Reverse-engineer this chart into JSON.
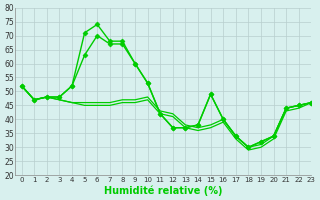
{
  "xlabel": "Humidité relative (%)",
  "xlim": [
    -0.5,
    23
  ],
  "ylim": [
    20,
    80
  ],
  "yticks": [
    20,
    25,
    30,
    35,
    40,
    45,
    50,
    55,
    60,
    65,
    70,
    75,
    80
  ],
  "xticks": [
    0,
    1,
    2,
    3,
    4,
    5,
    6,
    7,
    8,
    9,
    10,
    11,
    12,
    13,
    14,
    15,
    16,
    17,
    18,
    19,
    20,
    21,
    22,
    23
  ],
  "line_color": "#00cc00",
  "bg_color": "#d8f0ee",
  "grid_color": "#b8cece",
  "series": [
    {
      "y": [
        52,
        47,
        48,
        48,
        52,
        71,
        74,
        68,
        68,
        60,
        53,
        42,
        37,
        37,
        38,
        49,
        40,
        34,
        30,
        32,
        34,
        44,
        45,
        46
      ],
      "marker": true,
      "lw": 1.0
    },
    {
      "y": [
        52,
        47,
        48,
        48,
        52,
        63,
        70,
        67,
        67,
        60,
        53,
        42,
        37,
        37,
        38,
        49,
        40,
        34,
        30,
        32,
        34,
        44,
        45,
        46
      ],
      "marker": true,
      "lw": 1.0
    },
    {
      "y": [
        52,
        47,
        48,
        47,
        46,
        46,
        46,
        46,
        47,
        47,
        48,
        43,
        42,
        38,
        37,
        38,
        40,
        34,
        30,
        31,
        34,
        44,
        45,
        46
      ],
      "marker": false,
      "lw": 0.9
    },
    {
      "y": [
        52,
        47,
        48,
        47,
        46,
        45,
        45,
        45,
        46,
        46,
        47,
        42,
        41,
        37,
        36,
        37,
        39,
        33,
        29,
        30,
        33,
        43,
        44,
        46
      ],
      "marker": false,
      "lw": 0.9
    }
  ]
}
